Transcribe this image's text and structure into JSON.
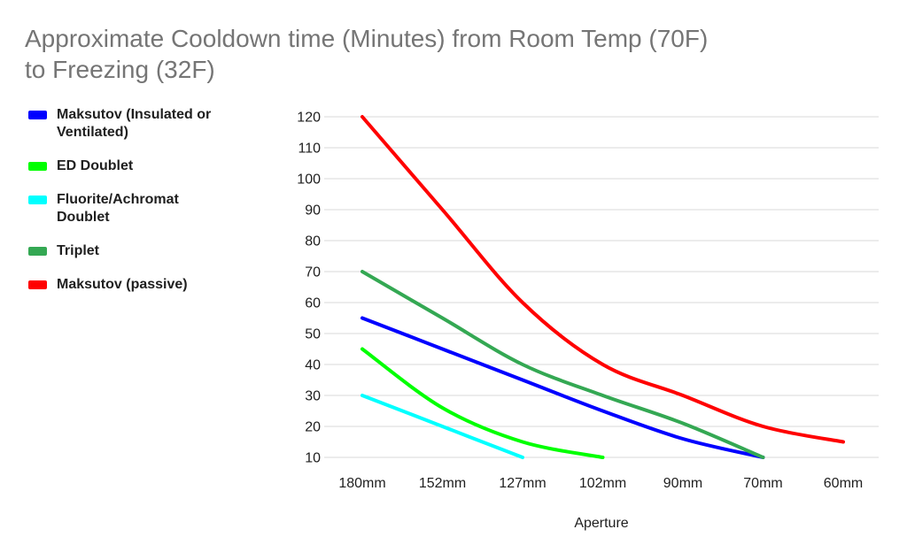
{
  "title_lines": [
    "Approximate Cooldown time (Minutes) from Room Temp (70F)",
    "to Freezing (32F)"
  ],
  "chart_data": {
    "type": "line",
    "title": "Approximate Cooldown time (Minutes) from Room Temp (70F) to Freezing (32F)",
    "smooth": true,
    "x_categories": [
      "180mm",
      "152mm",
      "127mm",
      "102mm",
      "90mm",
      "70mm",
      "60mm"
    ],
    "xlabel": "Aperture",
    "ylabel": "",
    "ylim": [
      10,
      120
    ],
    "ytick_step": 10,
    "grid": "horizontal-only",
    "legend_position": "left",
    "series": [
      {
        "name": "Maksutov (Insulated or Ventilated)",
        "color": "#0000ff",
        "values": [
          55,
          45,
          35,
          25,
          16,
          10,
          null
        ]
      },
      {
        "name": "ED Doublet",
        "color": "#00ff00",
        "values": [
          45,
          26,
          15,
          10,
          null,
          null,
          null
        ]
      },
      {
        "name": "Fluorite/Achromat Doublet",
        "color": "#00ffff",
        "values": [
          30,
          20,
          10,
          null,
          null,
          null,
          null
        ]
      },
      {
        "name": "Triplet",
        "color": "#34a853",
        "values": [
          70,
          55,
          40,
          30,
          21,
          10,
          null
        ]
      },
      {
        "name": "Maksutov (passive)",
        "color": "#ff0000",
        "values": [
          120,
          90,
          60,
          40,
          30,
          20,
          15
        ]
      }
    ]
  },
  "colors": {
    "title_text": "#757575",
    "axis_text": "#1f1f1f",
    "legend_text": "#1f1f1f",
    "gridline": "#d9d9d9",
    "background": "#ffffff"
  }
}
